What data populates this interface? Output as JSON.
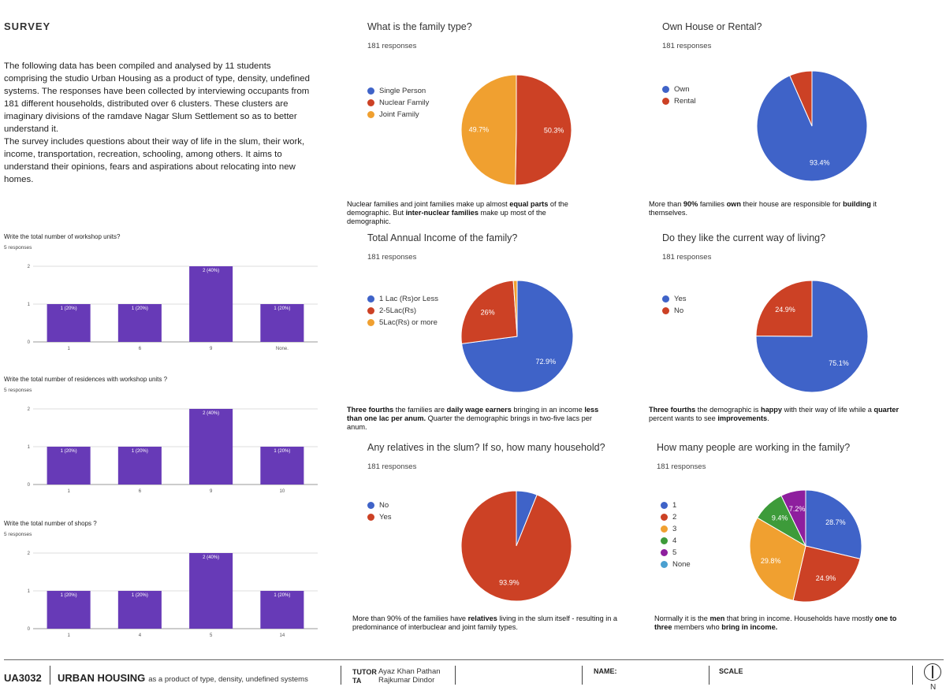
{
  "header": {
    "title": "SURVEY",
    "intro_1": "The following data has been compiled and analysed by 11 students comprising the studio Urban Housing as a product of type, density, undefined systems. The responses have been collected by interviewing occupants from 181 different households, distributed over 6 clusters. These clusters are imaginary divisions of the ramdave Nagar Slum Settlement so as to better understand it.",
    "intro_2": "The survey includes questions about their way of life in the slum, their work, income, transportation, recreation, schooling, among others. It aims to understand their opinions, fears and aspirations about relocating into new homes."
  },
  "colors": {
    "bar": "#673ab7",
    "blue": "#3f63c8",
    "red": "#cc4125",
    "orange": "#f0a030",
    "green": "#3d9b3a",
    "purple": "#8e1f9e",
    "teal": "#4aa0d0"
  },
  "chart_data": [
    {
      "type": "bar",
      "question": "Write the total number of workshop units?",
      "responses": "5 responses",
      "categories": [
        "1",
        "6",
        "9",
        "None."
      ],
      "values": [
        1,
        1,
        2,
        1
      ],
      "labels": [
        "1 (20%)",
        "1 (20%)",
        "2 (40%)",
        "1 (20%)"
      ],
      "yticks": [
        "0",
        "1",
        "2"
      ],
      "ylim": [
        0,
        2
      ]
    },
    {
      "type": "bar",
      "question": "Write the total number of residences with workshop units ?",
      "responses": "5 responses",
      "categories": [
        "1",
        "6",
        "9",
        "10"
      ],
      "values": [
        1,
        1,
        2,
        1
      ],
      "labels": [
        "1 (20%)",
        "1 (20%)",
        "2 (40%)",
        "1 (20%)"
      ],
      "yticks": [
        "0",
        "1",
        "2"
      ],
      "ylim": [
        0,
        2
      ]
    },
    {
      "type": "bar",
      "question": "Write the total number of shops ?",
      "responses": "5 responses",
      "categories": [
        "1",
        "4",
        "5",
        "14"
      ],
      "values": [
        1,
        1,
        2,
        1
      ],
      "labels": [
        "1 (20%)",
        "1 (20%)",
        "2 (40%)",
        "1 (20%)"
      ],
      "yticks": [
        "0",
        "1",
        "2"
      ],
      "ylim": [
        0,
        2
      ]
    },
    {
      "type": "pie",
      "question": "What is the family type?",
      "responses": "181 responses",
      "legend": [
        "Single Person",
        "Nuclear Family",
        "Joint Family"
      ],
      "values": [
        0,
        50.3,
        49.7
      ],
      "labels": [
        "",
        "50.3%",
        "49.7%"
      ],
      "colors": [
        "#3f63c8",
        "#cc4125",
        "#f0a030"
      ],
      "note": [
        "Nuclear families and joint families make up almost ",
        "equal parts",
        " of the demographic. But ",
        "inter-nuclear families",
        " make up most of the demographic."
      ]
    },
    {
      "type": "pie",
      "question": "Own House or Rental?",
      "responses": "181 responses",
      "legend": [
        "Own",
        "Rental"
      ],
      "values": [
        93.4,
        6.6
      ],
      "labels": [
        "93.4%",
        ""
      ],
      "colors": [
        "#3f63c8",
        "#cc4125"
      ],
      "note": [
        "More than ",
        "90%",
        " families ",
        "own",
        " their house are responsible for ",
        "building",
        " it themselves."
      ]
    },
    {
      "type": "pie",
      "question": "Total Annual Income of the family?",
      "responses": "181 responses",
      "legend": [
        "1 Lac (Rs)or Less",
        "2-5Lac(Rs)",
        "5Lac(Rs) or more"
      ],
      "values": [
        72.9,
        26,
        1.1
      ],
      "labels": [
        "72.9%",
        "26%",
        ""
      ],
      "colors": [
        "#3f63c8",
        "#cc4125",
        "#f0a030"
      ],
      "note": [
        "Three fourths",
        " the families are ",
        "daily wage earners",
        " bringing in an income ",
        "less than one lac per anum.",
        " Quarter the demographic brings in two-five lacs per anum."
      ]
    },
    {
      "type": "pie",
      "question": "Do they like the current way of living?",
      "responses": "181 responses",
      "legend": [
        "Yes",
        "No"
      ],
      "values": [
        75.1,
        24.9
      ],
      "labels": [
        "75.1%",
        "24.9%"
      ],
      "colors": [
        "#3f63c8",
        "#cc4125"
      ],
      "note": [
        "Three fourths",
        " the demographic is ",
        "happy",
        " with their way of life while a ",
        "quarter",
        " percent wants to see ",
        "improvements",
        "."
      ]
    },
    {
      "type": "pie",
      "question": "Any relatives in the slum? If so, how many  household?",
      "responses": "181 responses",
      "legend": [
        "No",
        "Yes"
      ],
      "values": [
        6.1,
        93.9
      ],
      "labels": [
        "",
        "93.9%"
      ],
      "colors": [
        "#3f63c8",
        "#cc4125"
      ],
      "note": [
        "More than 90% of the families have ",
        "relatives",
        " living in the slum itself - resulting in a predominance of interbuclear and joint family types."
      ]
    },
    {
      "type": "pie",
      "question": "How many people are working in the family?",
      "responses": "181 responses",
      "legend": [
        "1",
        "2",
        "3",
        "4",
        "5",
        "None"
      ],
      "values": [
        28.7,
        24.9,
        29.8,
        9.4,
        7.2,
        0
      ],
      "labels": [
        "28.7%",
        "24.9%",
        "29.8%",
        "9.4%",
        "7.2%",
        ""
      ],
      "colors": [
        "#3f63c8",
        "#cc4125",
        "#f0a030",
        "#3d9b3a",
        "#8e1f9e",
        "#4aa0d0"
      ],
      "note": [
        "Normally it is the ",
        "men",
        " that bring in income. Households have mostly ",
        "one to three",
        " members who ",
        "bring in income."
      ]
    }
  ],
  "footer": {
    "code": "UA3032",
    "title": "URBAN HOUSING",
    "subtitle": "as a product of type, density, undefined systems",
    "tutor_label": "TUTOR",
    "tutor_name": "Ayaz Khan Pathan",
    "ta_label": "TA",
    "ta_name": "Rajkumar Dindor",
    "name_label": "NAME:",
    "scale_label": "SCALE",
    "north": "N"
  }
}
